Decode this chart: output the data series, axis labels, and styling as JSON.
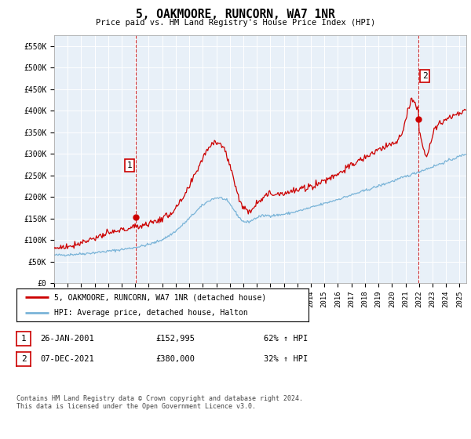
{
  "title": "5, OAKMOORE, RUNCORN, WA7 1NR",
  "subtitle": "Price paid vs. HM Land Registry's House Price Index (HPI)",
  "ylabel_ticks": [
    "£0",
    "£50K",
    "£100K",
    "£150K",
    "£200K",
    "£250K",
    "£300K",
    "£350K",
    "£400K",
    "£450K",
    "£500K",
    "£550K"
  ],
  "ytick_values": [
    0,
    50000,
    100000,
    150000,
    200000,
    250000,
    300000,
    350000,
    400000,
    450000,
    500000,
    550000
  ],
  "xlim_start": 1995.0,
  "xlim_end": 2025.5,
  "ylim": [
    0,
    575000
  ],
  "hpi_color": "#7ab4d8",
  "price_color": "#cc0000",
  "sale1_x": 2001.07,
  "sale1_y": 152995,
  "sale2_x": 2021.93,
  "sale2_y": 380000,
  "legend_label1": "5, OAKMOORE, RUNCORN, WA7 1NR (detached house)",
  "legend_label2": "HPI: Average price, detached house, Halton",
  "table_row1": [
    "1",
    "26-JAN-2001",
    "£152,995",
    "62% ↑ HPI"
  ],
  "table_row2": [
    "2",
    "07-DEC-2021",
    "£380,000",
    "32% ↑ HPI"
  ],
  "footer": "Contains HM Land Registry data © Crown copyright and database right 2024.\nThis data is licensed under the Open Government Licence v3.0.",
  "background_color": "#ffffff",
  "plot_bg_color": "#e8f0f8",
  "grid_color": "#ffffff"
}
